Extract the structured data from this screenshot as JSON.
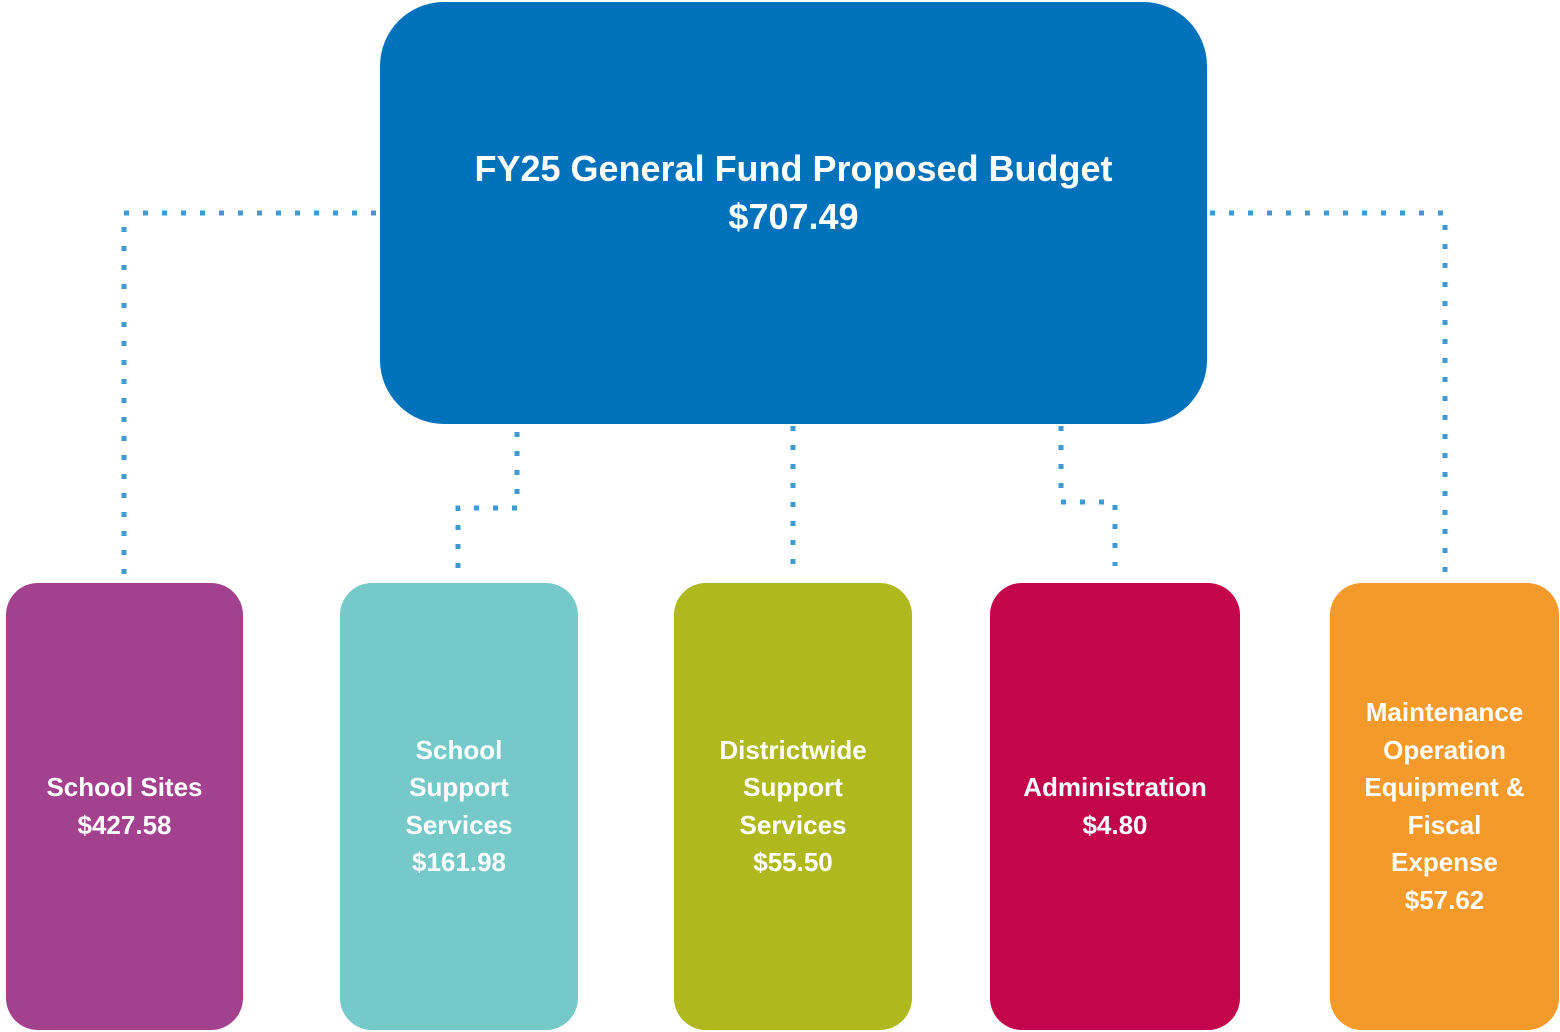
{
  "root": {
    "title": "FY25 General Fund Proposed Budget",
    "value": "$707.49"
  },
  "nodes": [
    {
      "label_lines": [
        "School Sites"
      ],
      "value": "$427.58"
    },
    {
      "label_lines": [
        "School",
        "Support",
        "Services"
      ],
      "value": "$161.98"
    },
    {
      "label_lines": [
        "Districtwide",
        "Support",
        "Services"
      ],
      "value": "$55.50"
    },
    {
      "label_lines": [
        "Administration"
      ],
      "value": "$4.80"
    },
    {
      "label_lines": [
        "Maintenance",
        "Operation",
        "Equipment &",
        "Fiscal",
        "Expense"
      ],
      "value": "$57.62"
    }
  ]
}
